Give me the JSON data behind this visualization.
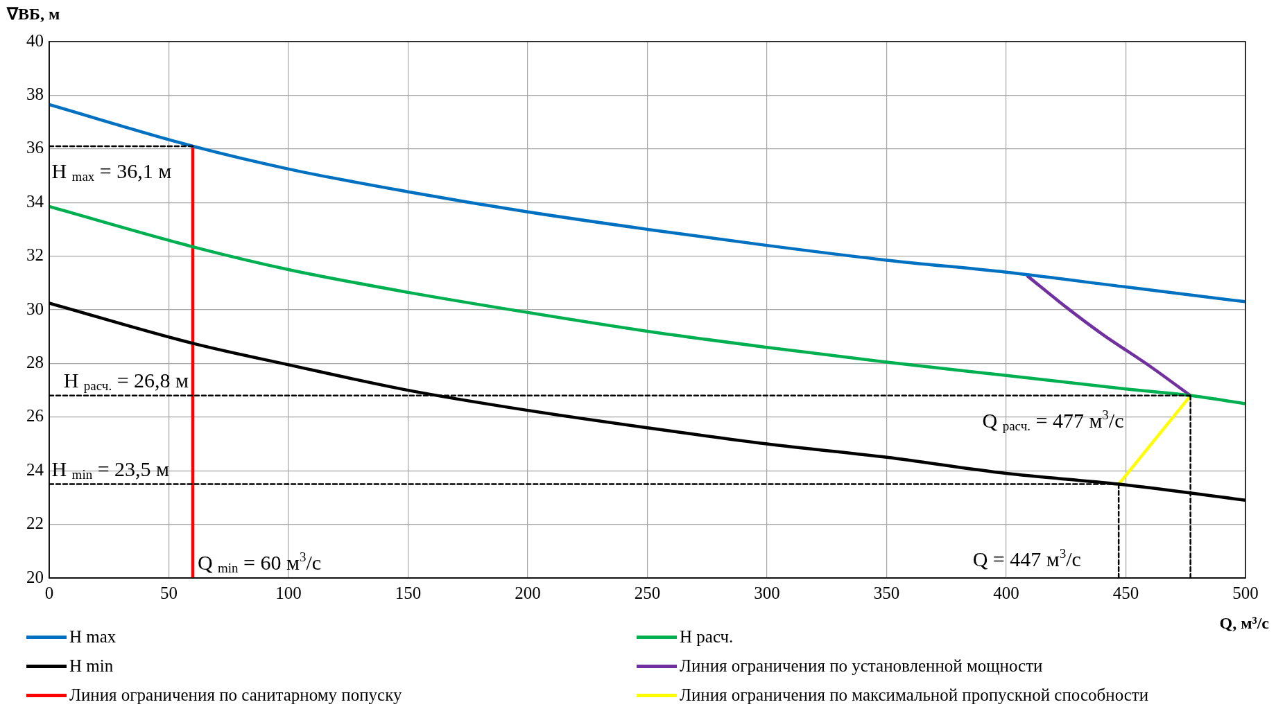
{
  "chart_data": {
    "type": "line",
    "xlabel": "Q, м³/с",
    "ylabel": "∇ВБ, м",
    "xlim": [
      0,
      500
    ],
    "xticks": [
      0,
      50,
      100,
      150,
      200,
      250,
      300,
      350,
      400,
      450,
      500
    ],
    "ylim": [
      20,
      40
    ],
    "yticks": [
      20,
      22,
      24,
      26,
      28,
      30,
      32,
      34,
      36,
      38,
      40
    ],
    "grid": true,
    "legend": "bottom",
    "marker": "none",
    "line_style": "solid",
    "series": [
      {
        "name": "H max",
        "color": "#0070c0",
        "x": [
          0,
          60,
          100,
          150,
          200,
          250,
          300,
          350,
          400,
          450,
          500
        ],
        "values": [
          37.65,
          36.1,
          35.25,
          34.4,
          33.65,
          33.0,
          32.4,
          31.85,
          31.4,
          30.85,
          30.3
        ]
      },
      {
        "name": "H расч.",
        "color": "#00b050",
        "x": [
          0,
          60,
          100,
          150,
          200,
          250,
          300,
          350,
          400,
          450,
          477,
          500
        ],
        "values": [
          33.85,
          32.35,
          31.5,
          30.65,
          29.9,
          29.2,
          28.6,
          28.05,
          27.55,
          27.05,
          26.8,
          26.5
        ]
      },
      {
        "name": "H min",
        "color": "#000000",
        "x": [
          0,
          60,
          100,
          150,
          200,
          250,
          300,
          350,
          400,
          447,
          500
        ],
        "values": [
          30.25,
          28.75,
          27.95,
          27.0,
          26.25,
          25.6,
          25.0,
          24.5,
          23.9,
          23.5,
          22.9
        ]
      },
      {
        "name": "Линия ограничения по установленной мощности",
        "color": "#7030a0",
        "x": [
          409,
          425,
          440,
          460,
          477
        ],
        "values": [
          31.25,
          30.1,
          29.1,
          27.9,
          26.8
        ]
      },
      {
        "name": "Линия ограничения по санитарному попуску",
        "color": "#ff0000",
        "x": [
          60,
          60
        ],
        "values": [
          20,
          36.1
        ]
      },
      {
        "name": "Линия ограничения по максимальной пропускной способности",
        "color": "#ffff00",
        "x": [
          447,
          477
        ],
        "values": [
          23.5,
          26.8
        ]
      },
      {
        "color": "#000000",
        "line_style": "dashed",
        "x": [
          0,
          60
        ],
        "values": [
          36.1,
          36.1
        ]
      },
      {
        "color": "#000000",
        "line_style": "dashed",
        "x": [
          0,
          477
        ],
        "values": [
          26.8,
          26.8
        ]
      },
      {
        "color": "#000000",
        "line_style": "dashed",
        "x": [
          0,
          447
        ],
        "values": [
          23.5,
          23.5
        ]
      },
      {
        "color": "#000000",
        "line_style": "dashed",
        "x": [
          447,
          447
        ],
        "values": [
          20,
          23.5
        ]
      },
      {
        "color": "#000000",
        "line_style": "dashed",
        "x": [
          477,
          477
        ],
        "values": [
          20,
          26.8
        ]
      }
    ],
    "annotations": [
      "H $_{max}$ = 36,1 м",
      "H $_{расч.}$ = 26,8 м",
      "H $_{min}$ = 23,5 м",
      "Q $_{min}$ = 60 м$^{3}$/с",
      "Q $_{расч.}$ = 477 м$^{3}$/с",
      "Q = 447 м$^{3}$/с"
    ]
  }
}
